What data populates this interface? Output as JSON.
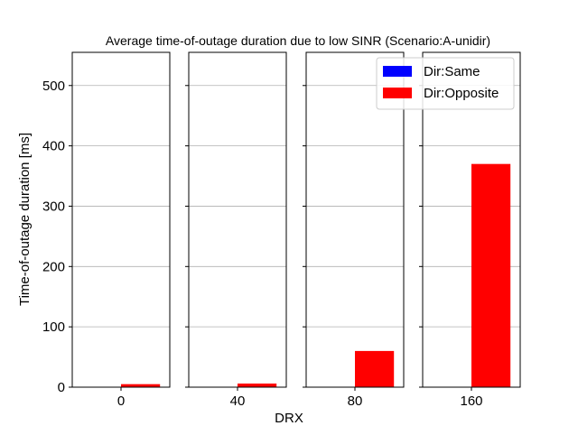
{
  "chart_data": {
    "type": "bar",
    "title": "Average time-of-outage duration due to low SINR (Scenario:A-unidir)",
    "xlabel": "DRX",
    "ylabel": "Time-of-outage duration [ms]",
    "ylim": [
      0,
      555
    ],
    "yticks": [
      0,
      100,
      200,
      300,
      400,
      500
    ],
    "grid": "horizontal",
    "legend_position": "top-right",
    "categories": [
      "0",
      "40",
      "80",
      "160"
    ],
    "series": [
      {
        "name": "Dir:Same",
        "color": "#0000ff",
        "values": [
          0,
          0,
          0,
          0
        ]
      },
      {
        "name": "Dir:Opposite",
        "color": "#ff0000",
        "values": [
          5,
          6,
          60,
          370
        ]
      }
    ]
  }
}
